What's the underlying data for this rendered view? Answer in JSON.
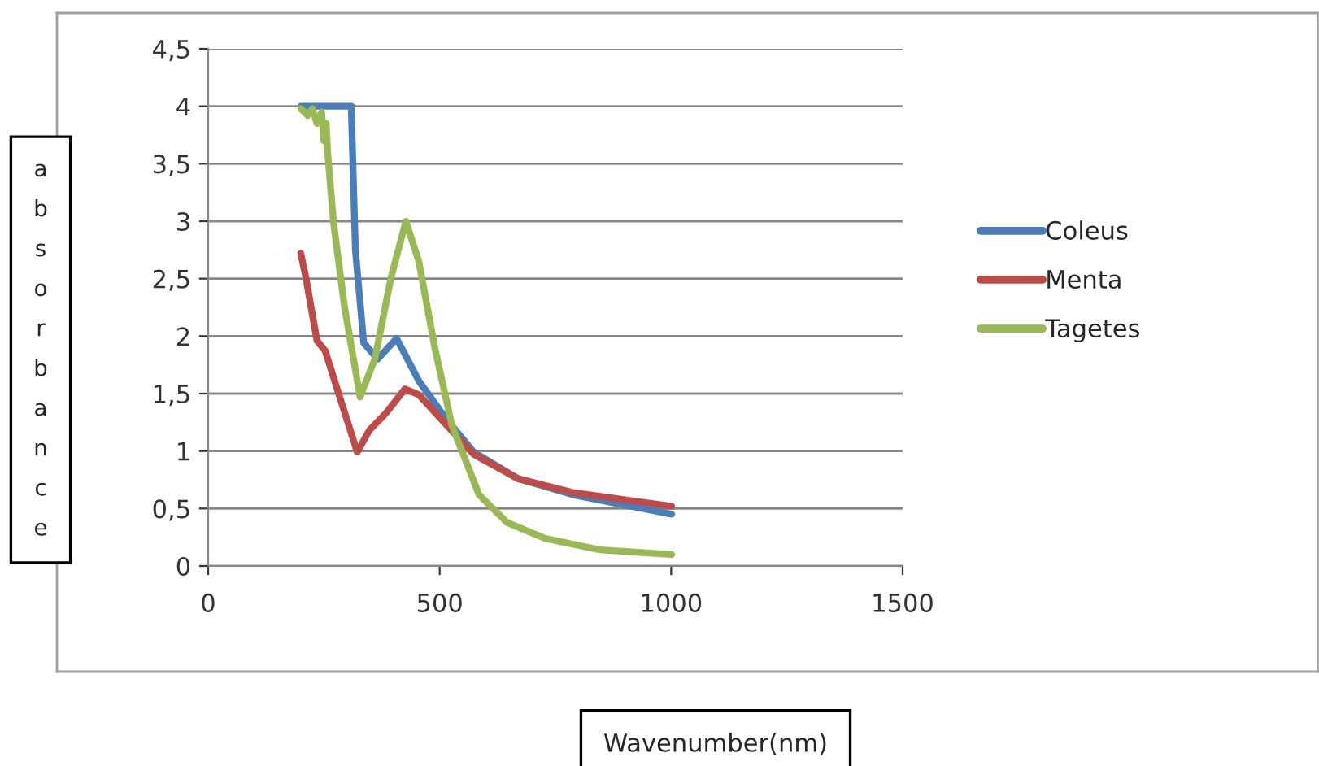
{
  "chart_data": {
    "type": "line",
    "xlabel": "Wavenumber(nm)",
    "ylabel": "absorbance",
    "xlim": [
      0,
      1500
    ],
    "xticks": [
      0,
      500,
      1000,
      1500
    ],
    "ylim": [
      0,
      4.5
    ],
    "yticks": [
      0,
      {
        "value": 0.5,
        "label": "0,5"
      },
      1,
      {
        "value": 1.5,
        "label": "1,5"
      },
      2,
      {
        "value": 2.5,
        "label": "2,5"
      },
      3,
      {
        "value": 3.5,
        "label": "3,5"
      },
      4,
      {
        "value": 4.5,
        "label": "4,5"
      }
    ],
    "grid": "y",
    "legend": "right",
    "marker": "none",
    "line_style": "solid",
    "series": [
      {
        "name": "Coleus",
        "color": "#4a7ebb",
        "x": [
          200,
          250,
          309,
          318,
          336,
          366,
          407,
          455,
          514,
          574,
          669,
          787,
          1001
        ],
        "values": [
          4.0,
          4.0,
          4.0,
          2.75,
          1.94,
          1.8,
          1.98,
          1.61,
          1.28,
          0.99,
          0.76,
          0.62,
          0.45
        ]
      },
      {
        "name": "Menta",
        "color": "#be4b48",
        "x": [
          200,
          211,
          235,
          253,
          277,
          322,
          348,
          384,
          425,
          455,
          514,
          574,
          669,
          787,
          1001
        ],
        "values": [
          2.72,
          2.51,
          1.96,
          1.87,
          1.56,
          0.99,
          1.18,
          1.33,
          1.54,
          1.49,
          1.23,
          0.97,
          0.76,
          0.64,
          0.52
        ]
      },
      {
        "name": "Tagetes",
        "color": "#98b954",
        "x": [
          200,
          215,
          225,
          235,
          245,
          250,
          255,
          258,
          271,
          294,
          328,
          360,
          395,
          427,
          455,
          490,
          526,
          585,
          645,
          728,
          847,
          1001
        ],
        "values": [
          3.98,
          3.92,
          3.98,
          3.85,
          3.95,
          3.7,
          3.85,
          3.6,
          2.98,
          2.27,
          1.47,
          1.8,
          2.51,
          3.0,
          2.65,
          1.89,
          1.23,
          0.62,
          0.38,
          0.24,
          0.14,
          0.1
        ]
      }
    ]
  }
}
